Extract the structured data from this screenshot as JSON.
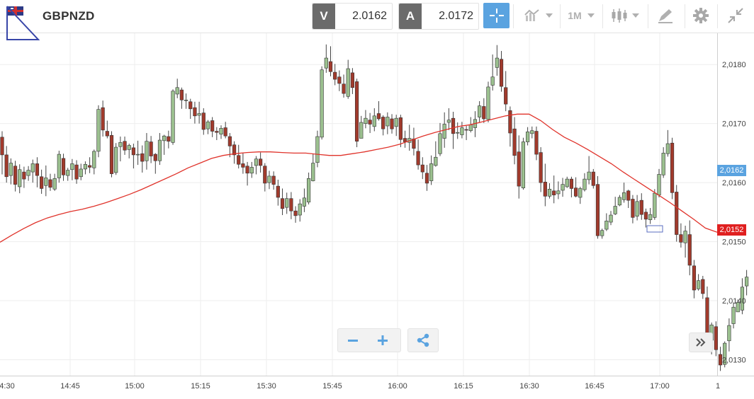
{
  "instrument": {
    "symbol": "GBPNZD",
    "logo_icon": "flag-icon"
  },
  "quotes": {
    "bid": {
      "tag": "V",
      "value": "2.0162"
    },
    "ask": {
      "tag": "A",
      "value": "2.0172"
    }
  },
  "toolbar": {
    "timeframe": "1M",
    "crosshair_icon": "crosshair-icon",
    "chart_type_icon": "line-chart-icon",
    "candle_icon": "candlestick-icon",
    "draw_icon": "drawing-pen-icon",
    "settings_icon": "gear-icon",
    "collapse_icon": "collapse-arrows-icon"
  },
  "colors": {
    "bull": "#9bc08f",
    "bear": "#a13a2c",
    "ma": "#e0332b",
    "accent": "#5aa3e0",
    "bid_label": "#5aa3e0",
    "ma_label": "#e02020"
  },
  "chart_data": {
    "type": "candlestick",
    "ylim": [
      2.01273,
      2.01853
    ],
    "y_ticks": [
      "2,0180",
      "2,0170",
      "2,0160",
      "2,0150",
      "2,0140",
      "2,0130"
    ],
    "x_ticks": [
      "4:30",
      "14:45",
      "15:00",
      "15:15",
      "15:30",
      "15:45",
      "16:00",
      "16:15",
      "16:30",
      "16:45",
      "17:00",
      "1"
    ],
    "current_price_label": "2,0162",
    "ma_value_label": "2,0152",
    "candles": [
      [
        2.01677,
        2.01647,
        2.01687,
        2.01614
      ],
      [
        2.01647,
        2.0161,
        2.01662,
        2.016
      ],
      [
        2.01612,
        2.01633,
        2.01641,
        2.01597
      ],
      [
        2.01628,
        2.01597,
        2.01637,
        2.01585
      ],
      [
        2.01593,
        2.01622,
        2.01631,
        2.01582
      ],
      [
        2.01618,
        2.01606,
        2.01627,
        2.01591
      ],
      [
        2.01612,
        2.01621,
        2.01628,
        2.01603
      ],
      [
        2.01618,
        2.01632,
        2.01639,
        2.016
      ],
      [
        2.01632,
        2.01612,
        2.01643,
        2.01592
      ],
      [
        2.0161,
        2.0159,
        2.01622,
        2.01581
      ],
      [
        2.01595,
        2.01608,
        2.01629,
        2.01577
      ],
      [
        2.01605,
        2.01592,
        2.01615,
        2.01586
      ],
      [
        2.01589,
        2.01607,
        2.01615,
        2.01586
      ],
      [
        2.01608,
        2.01648,
        2.01654,
        2.016
      ],
      [
        2.01641,
        2.01613,
        2.01649,
        2.01603
      ],
      [
        2.01612,
        2.01621,
        2.01625,
        2.01603
      ],
      [
        2.01622,
        2.01632,
        2.0164,
        2.01604
      ],
      [
        2.0163,
        2.01606,
        2.01638,
        2.01598
      ],
      [
        2.0161,
        2.01623,
        2.01632,
        2.01604
      ],
      [
        2.01623,
        2.01631,
        2.01636,
        2.01614
      ],
      [
        2.01629,
        2.01626,
        2.01643,
        2.01616
      ],
      [
        2.01625,
        2.01653,
        2.01656,
        2.01614
      ],
      [
        2.01653,
        2.01724,
        2.01731,
        2.01643
      ],
      [
        2.01727,
        2.01689,
        2.01739,
        2.01678
      ],
      [
        2.01687,
        2.01679,
        2.01705,
        2.01675
      ],
      [
        2.0168,
        2.01615,
        2.01687,
        2.01609
      ],
      [
        2.01617,
        2.0166,
        2.01667,
        2.01613
      ],
      [
        2.01661,
        2.01668,
        2.01678,
        2.01636
      ],
      [
        2.0167,
        2.01655,
        2.01678,
        2.01647
      ],
      [
        2.01656,
        2.01663,
        2.01666,
        2.01641
      ],
      [
        2.01659,
        2.01647,
        2.01666,
        2.01624
      ],
      [
        2.01648,
        2.01648,
        2.01671,
        2.0163
      ],
      [
        2.01649,
        2.01636,
        2.01663,
        2.01617
      ],
      [
        2.01637,
        2.0167,
        2.01684,
        2.01622
      ],
      [
        2.01669,
        2.01645,
        2.01679,
        2.01633
      ],
      [
        2.01648,
        2.01637,
        2.0165,
        2.01615
      ],
      [
        2.01637,
        2.01672,
        2.01684,
        2.0163
      ],
      [
        2.01671,
        2.01679,
        2.01681,
        2.01647
      ],
      [
        2.01678,
        2.0167,
        2.01688,
        2.01658
      ],
      [
        2.01668,
        2.01755,
        2.01758,
        2.01664
      ],
      [
        2.0175,
        2.01761,
        2.01776,
        2.01743
      ],
      [
        2.01757,
        2.0174,
        2.01761,
        2.01725
      ],
      [
        2.01739,
        2.0174,
        2.01751,
        2.01725
      ],
      [
        2.01737,
        2.01725,
        2.01742,
        2.01708
      ],
      [
        2.01727,
        2.01713,
        2.01737,
        2.017
      ],
      [
        2.01714,
        2.01717,
        2.01737,
        2.017
      ],
      [
        2.01718,
        2.0169,
        2.01726,
        2.01681
      ],
      [
        2.01691,
        2.01703,
        2.01706,
        2.01682
      ],
      [
        2.01705,
        2.01687,
        2.01711,
        2.01677
      ],
      [
        2.01687,
        2.01685,
        2.01694,
        2.01672
      ],
      [
        2.01682,
        2.01692,
        2.01697,
        2.01674
      ],
      [
        2.01693,
        2.01679,
        2.01703,
        2.01675
      ],
      [
        2.01678,
        2.01662,
        2.01684,
        2.01643
      ],
      [
        2.01664,
        2.01647,
        2.0167,
        2.01632
      ],
      [
        2.01646,
        2.01631,
        2.01664,
        2.01624
      ],
      [
        2.01632,
        2.01626,
        2.0165,
        2.01615
      ],
      [
        2.01628,
        2.01616,
        2.01635,
        2.01595
      ],
      [
        2.01616,
        2.01626,
        2.01635,
        2.01608
      ],
      [
        2.01629,
        2.0164,
        2.01645,
        2.01614
      ],
      [
        2.0164,
        2.01629,
        2.01651,
        2.01617
      ],
      [
        2.01628,
        2.01599,
        2.01633,
        2.01585
      ],
      [
        2.016,
        2.01611,
        2.0162,
        2.01589
      ],
      [
        2.01611,
        2.01597,
        2.01619,
        2.01588
      ],
      [
        2.01594,
        2.01575,
        2.01605,
        2.01561
      ],
      [
        2.01573,
        2.01556,
        2.0159,
        2.01545
      ],
      [
        2.01558,
        2.01573,
        2.01583,
        2.01547
      ],
      [
        2.01573,
        2.01552,
        2.01584,
        2.01538
      ],
      [
        2.01552,
        2.01544,
        2.0156,
        2.01532
      ],
      [
        2.01545,
        2.01564,
        2.01572,
        2.01534
      ],
      [
        2.0156,
        2.01574,
        2.0159,
        2.0155
      ],
      [
        2.01567,
        2.01607,
        2.01617,
        2.01563
      ],
      [
        2.01603,
        2.01633,
        2.01649,
        2.01602
      ],
      [
        2.01634,
        2.01678,
        2.01688,
        2.01626
      ],
      [
        2.01677,
        2.01791,
        2.01797,
        2.01673
      ],
      [
        2.01794,
        2.01811,
        2.01834,
        2.01786
      ],
      [
        2.01805,
        2.01788,
        2.01831,
        2.0178
      ],
      [
        2.01787,
        2.01775,
        2.01801,
        2.01765
      ],
      [
        2.01779,
        2.01768,
        2.0179,
        2.01755
      ],
      [
        2.01767,
        2.01751,
        2.01783,
        2.01744
      ],
      [
        2.01746,
        2.01793,
        2.01808,
        2.01742
      ],
      [
        2.01786,
        2.01761,
        2.01794,
        2.0175
      ],
      [
        2.01771,
        2.0167,
        2.01776,
        2.0166
      ],
      [
        2.01675,
        2.01702,
        2.01713,
        2.01678
      ],
      [
        2.017,
        2.01709,
        2.01723,
        2.01692
      ],
      [
        2.01706,
        2.01699,
        2.01718,
        2.01684
      ],
      [
        2.01695,
        2.01713,
        2.01726,
        2.01687
      ],
      [
        2.01717,
        2.01708,
        2.01738,
        2.01705
      ],
      [
        2.01711,
        2.01691,
        2.01714,
        2.0168
      ],
      [
        2.01696,
        2.01711,
        2.01719,
        2.01682
      ],
      [
        2.01708,
        2.01691,
        2.01716,
        2.01683
      ],
      [
        2.01695,
        2.01709,
        2.01715,
        2.01679
      ],
      [
        2.0171,
        2.01673,
        2.01715,
        2.0166
      ],
      [
        2.01675,
        2.01669,
        2.01688,
        2.01659
      ],
      [
        2.01668,
        2.01675,
        2.01698,
        2.01654
      ],
      [
        2.01674,
        2.01658,
        2.01693,
        2.01646
      ],
      [
        2.01653,
        2.0163,
        2.01673,
        2.01622
      ],
      [
        2.0163,
        2.01618,
        2.01643,
        2.01606
      ],
      [
        2.01616,
        2.01599,
        2.0163,
        2.01586
      ],
      [
        2.01603,
        2.01632,
        2.01646,
        2.01596
      ],
      [
        2.01629,
        2.01643,
        2.0167,
        2.01627
      ],
      [
        2.01649,
        2.01683,
        2.01701,
        2.01645
      ],
      [
        2.01675,
        2.01699,
        2.01719,
        2.01659
      ],
      [
        2.01702,
        2.01706,
        2.01726,
        2.01689
      ],
      [
        2.01709,
        2.01683,
        2.0172,
        2.01657
      ],
      [
        2.01685,
        2.01685,
        2.01702,
        2.01674
      ],
      [
        2.01681,
        2.01693,
        2.01703,
        2.01675
      ],
      [
        2.0169,
        2.01689,
        2.01696,
        2.01672
      ],
      [
        2.01688,
        2.01698,
        2.01711,
        2.01685
      ],
      [
        2.01693,
        2.01707,
        2.01721,
        2.01677
      ],
      [
        2.01711,
        2.0173,
        2.01738,
        2.01702
      ],
      [
        2.01729,
        2.01708,
        2.01743,
        2.01701
      ],
      [
        2.01707,
        2.01762,
        2.01771,
        2.01702
      ],
      [
        2.01765,
        2.01779,
        2.01817,
        2.01756
      ],
      [
        2.01795,
        2.01811,
        2.01833,
        2.01781
      ],
      [
        2.01809,
        2.01763,
        2.01823,
        2.01754
      ],
      [
        2.01761,
        2.01733,
        2.01789,
        2.01721
      ],
      [
        2.01722,
        2.01684,
        2.01729,
        2.01661
      ],
      [
        2.01691,
        2.01646,
        2.01711,
        2.01631
      ],
      [
        2.01652,
        2.01594,
        2.0168,
        2.01573
      ],
      [
        2.01591,
        2.01669,
        2.01676,
        2.01588
      ],
      [
        2.01669,
        2.01686,
        2.01694,
        2.01663
      ],
      [
        2.01683,
        2.01688,
        2.01695,
        2.01675
      ],
      [
        2.01687,
        2.01648,
        2.01695,
        2.01638
      ],
      [
        2.01651,
        2.016,
        2.0166,
        2.01584
      ],
      [
        2.01601,
        2.01577,
        2.01632,
        2.0156
      ],
      [
        2.01577,
        2.01589,
        2.01599,
        2.01573
      ],
      [
        2.01586,
        2.01579,
        2.01612,
        2.01565
      ],
      [
        2.01581,
        2.01586,
        2.01602,
        2.01572
      ],
      [
        2.01587,
        2.01597,
        2.01608,
        2.01576
      ],
      [
        2.01593,
        2.01606,
        2.0161,
        2.01591
      ],
      [
        2.01606,
        2.0159,
        2.0161,
        2.01575
      ],
      [
        2.01591,
        2.01577,
        2.01609,
        2.01575
      ],
      [
        2.01575,
        2.0159,
        2.01593,
        2.01564
      ],
      [
        2.01588,
        2.01606,
        2.01616,
        2.01585
      ],
      [
        2.01605,
        2.01618,
        2.01645,
        2.01597
      ],
      [
        2.01618,
        2.01595,
        2.01623,
        2.0159
      ],
      [
        2.01597,
        2.0151,
        2.01611,
        2.01505
      ],
      [
        2.0151,
        2.01519,
        2.01522,
        2.01505
      ],
      [
        2.01521,
        2.01535,
        2.01548,
        2.01518
      ],
      [
        2.01533,
        2.01545,
        2.01552,
        2.01528
      ],
      [
        2.01547,
        2.0156,
        2.01576,
        2.01545
      ],
      [
        2.01562,
        2.01575,
        2.01579,
        2.0156
      ],
      [
        2.01571,
        2.01583,
        2.016,
        2.01566
      ],
      [
        2.01586,
        2.0157,
        2.01588,
        2.01557
      ],
      [
        2.01572,
        2.01541,
        2.01579,
        2.01531
      ],
      [
        2.01543,
        2.01568,
        2.01579,
        2.01536
      ],
      [
        2.0157,
        2.01546,
        2.01582,
        2.01537
      ],
      [
        2.0155,
        2.01538,
        2.01556,
        2.01524
      ],
      [
        2.01537,
        2.01546,
        2.01557,
        2.0153
      ],
      [
        2.01541,
        2.01582,
        2.01589,
        2.01537
      ],
      [
        2.01579,
        2.01614,
        2.01623,
        2.01575
      ],
      [
        2.01613,
        2.0165,
        2.0166,
        2.01608
      ],
      [
        2.01649,
        2.01666,
        2.01689,
        2.01644
      ],
      [
        2.01667,
        2.01583,
        2.01676,
        2.01572
      ],
      [
        2.01584,
        2.01512,
        2.01596,
        2.015
      ],
      [
        2.01512,
        2.01499,
        2.01531,
        2.0149
      ],
      [
        2.01498,
        2.01518,
        2.01527,
        2.01473
      ],
      [
        2.01512,
        2.0146,
        2.01536,
        2.01443
      ],
      [
        2.01459,
        2.01418,
        2.01469,
        2.01404
      ],
      [
        2.0142,
        2.01434,
        2.01445,
        2.01417
      ],
      [
        2.01436,
        2.01412,
        2.01442,
        2.01403
      ],
      [
        2.01405,
        2.01334,
        2.01424,
        2.01317
      ],
      [
        2.01333,
        2.01359,
        2.01363,
        2.01309
      ],
      [
        2.01356,
        2.01317,
        2.01365,
        2.01306
      ],
      [
        2.01309,
        2.01291,
        2.01322,
        2.01281
      ],
      [
        2.01292,
        2.01328,
        2.01331,
        2.01287
      ],
      [
        2.01332,
        2.01358,
        2.0137,
        2.01314
      ],
      [
        2.01361,
        2.01389,
        2.01397,
        2.01353
      ],
      [
        2.01381,
        2.01397,
        2.01402,
        2.01382
      ],
      [
        2.01384,
        2.01423,
        2.01438,
        2.01377
      ],
      [
        2.01425,
        2.0144,
        2.01452,
        2.01409
      ]
    ],
    "ma_series": [
      2.01499,
      2.01511,
      2.01522,
      2.01532,
      2.0154,
      2.01546,
      2.01551,
      2.01555,
      2.0156,
      2.01566,
      2.01573,
      2.0158,
      2.01588,
      2.01597,
      2.01606,
      2.01615,
      2.01625,
      2.01633,
      2.01641,
      2.01646,
      2.01649,
      2.01651,
      2.01652,
      2.01652,
      2.01651,
      2.0165,
      2.0165,
      2.01648,
      2.01646,
      2.01646,
      2.01649,
      2.01652,
      2.01656,
      2.0166,
      2.01665,
      2.01672,
      2.01679,
      2.01685,
      2.0169,
      2.01695,
      2.01698,
      2.01703,
      2.01708,
      2.01713,
      2.01716,
      2.01716,
      2.01705,
      2.0169,
      2.01677,
      2.01667,
      2.01656,
      2.01644,
      2.01632,
      2.01618,
      2.01605,
      2.01592,
      2.01579,
      2.01566,
      2.01552,
      2.01538,
      2.01523,
      2.01516
    ]
  },
  "controls": {
    "zoom_out_icon": "minus-icon",
    "zoom_in_icon": "plus-icon",
    "share_icon": "share-icon",
    "scroll_end_icon": "double-chevron-right-icon"
  }
}
